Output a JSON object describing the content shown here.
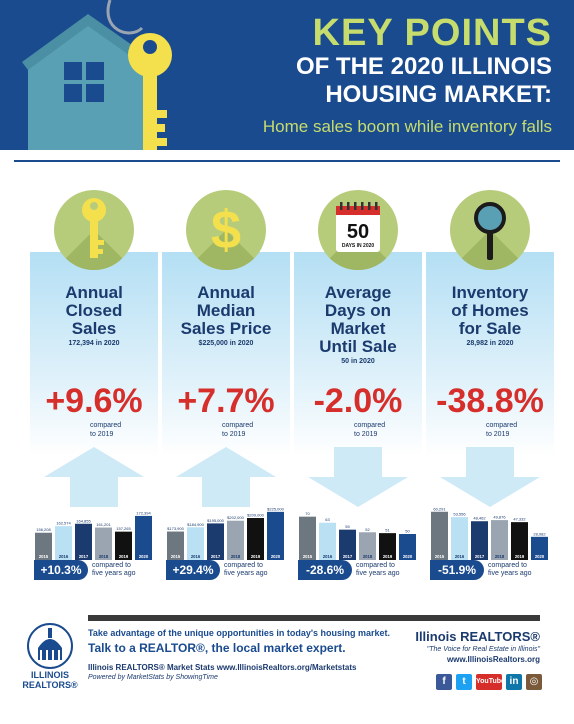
{
  "header": {
    "title_line1": "KEY POINTS",
    "title_line2": "OF THE 2020 ILLINOIS",
    "title_line3": "HOUSING MARKET:",
    "subtitle": "Home sales boom while inventory falls"
  },
  "colors": {
    "navy": "#1a4b8f",
    "lime": "#c6dc6c",
    "red": "#d62e2a",
    "key_yellow": "#f4e04d",
    "house_teal": "#5aa0b4"
  },
  "cards": [
    {
      "icon": "key-icon",
      "title": [
        "Annual",
        "Closed",
        "Sales"
      ],
      "note": "172,394 in 2020",
      "change": "+9.6%",
      "compared": [
        "compared",
        "to 2019"
      ],
      "direction": "up",
      "five_year": "+10.3%",
      "five_year_text": [
        "compared to",
        "five years ago"
      ],
      "bars": {
        "years": [
          "2015",
          "2016",
          "2017",
          "2018",
          "2019",
          "2020"
        ],
        "values": [
          156208,
          162574,
          164855,
          161201,
          157265,
          172394
        ],
        "labels": [
          "156,208",
          "162,574",
          "164,855",
          "161,201",
          "157,265",
          "172,394"
        ],
        "min": 130000,
        "max": 180000
      }
    },
    {
      "icon": "dollar-icon",
      "title": [
        "Annual",
        "Median",
        "Sales Price"
      ],
      "note": "$225,000 in 2020",
      "change": "+7.7%",
      "compared": [
        "compared",
        "to 2019"
      ],
      "direction": "up",
      "five_year": "+29.4%",
      "five_year_text": [
        "compared to",
        "five years ago"
      ],
      "bars": {
        "years": [
          "2015",
          "2016",
          "2017",
          "2018",
          "2019",
          "2020"
        ],
        "values": [
          173900,
          184900,
          195000,
          202000,
          209000,
          225000
        ],
        "labels": [
          "$173,900",
          "$184,900",
          "$195,000",
          "$202,000",
          "$209,000",
          "$225,000"
        ],
        "min": 100000,
        "max": 235000
      }
    },
    {
      "icon": "calendar-icon",
      "icon_number": "50",
      "icon_caption": "DAYS IN 2020",
      "title": [
        "Average",
        "Days on",
        "Market",
        "Until Sale"
      ],
      "note": "50 in 2020",
      "change": "-2.0%",
      "compared": [
        "compared",
        "to 2019"
      ],
      "direction": "down",
      "five_year": "-28.6%",
      "five_year_text": [
        "compared to",
        "five years ago"
      ],
      "bars": {
        "years": [
          "2015",
          "2016",
          "2017",
          "2018",
          "2019",
          "2020"
        ],
        "values": [
          70,
          63,
          55,
          52,
          51,
          50
        ],
        "labels": [
          "70",
          "63",
          "55",
          "52",
          "51",
          "50"
        ],
        "min": 20,
        "max": 80
      }
    },
    {
      "icon": "magnifier-icon",
      "title": [
        "Inventory",
        "of Homes",
        "for Sale"
      ],
      "note": "28,982 in 2020",
      "change": "-38.8%",
      "compared": [
        "compared",
        "to 2019"
      ],
      "direction": "down",
      "five_year": "-51.9%",
      "five_year_text": [
        "compared to",
        "five years ago"
      ],
      "bars": {
        "years": [
          "2015",
          "2016",
          "2017",
          "2018",
          "2019",
          "2020"
        ],
        "values": [
          60291,
          53556,
          48462,
          49876,
          47332,
          28982
        ],
        "labels": [
          "60,291",
          "53,556",
          "48,462",
          "49,876",
          "47,332",
          "28,982"
        ],
        "min": 0,
        "max": 65000
      }
    }
  ],
  "footer": {
    "line1": "Take advantage of the unique opportunities in today's housing market.",
    "line2": "Talk to a REALTOR®, the local market expert.",
    "line3": "Illinois REALTORS® Market Stats www.IllinoisRealtors.org/Marketstats",
    "line4": "Powered by MarketStats by ShowingTime",
    "logo_line1": "ILLINOIS",
    "logo_line2": "REALTORS®",
    "brand_name": "Illinois REALTORS®",
    "brand_tagline": "\"The Voice for Real Estate in Illinois\"",
    "brand_url": "www.IllinoisRealtors.org",
    "social": [
      {
        "icon": "facebook-icon",
        "label": "f",
        "color": "#3b5998"
      },
      {
        "icon": "twitter-icon",
        "label": "t",
        "color": "#1da1f2"
      },
      {
        "icon": "youtube-icon",
        "label": "YouTube",
        "color": "#d62e2a"
      },
      {
        "icon": "linkedin-icon",
        "label": "in",
        "color": "#0e76a8"
      },
      {
        "icon": "instagram-icon",
        "label": "◎",
        "color": "#7a5a3a"
      }
    ]
  }
}
